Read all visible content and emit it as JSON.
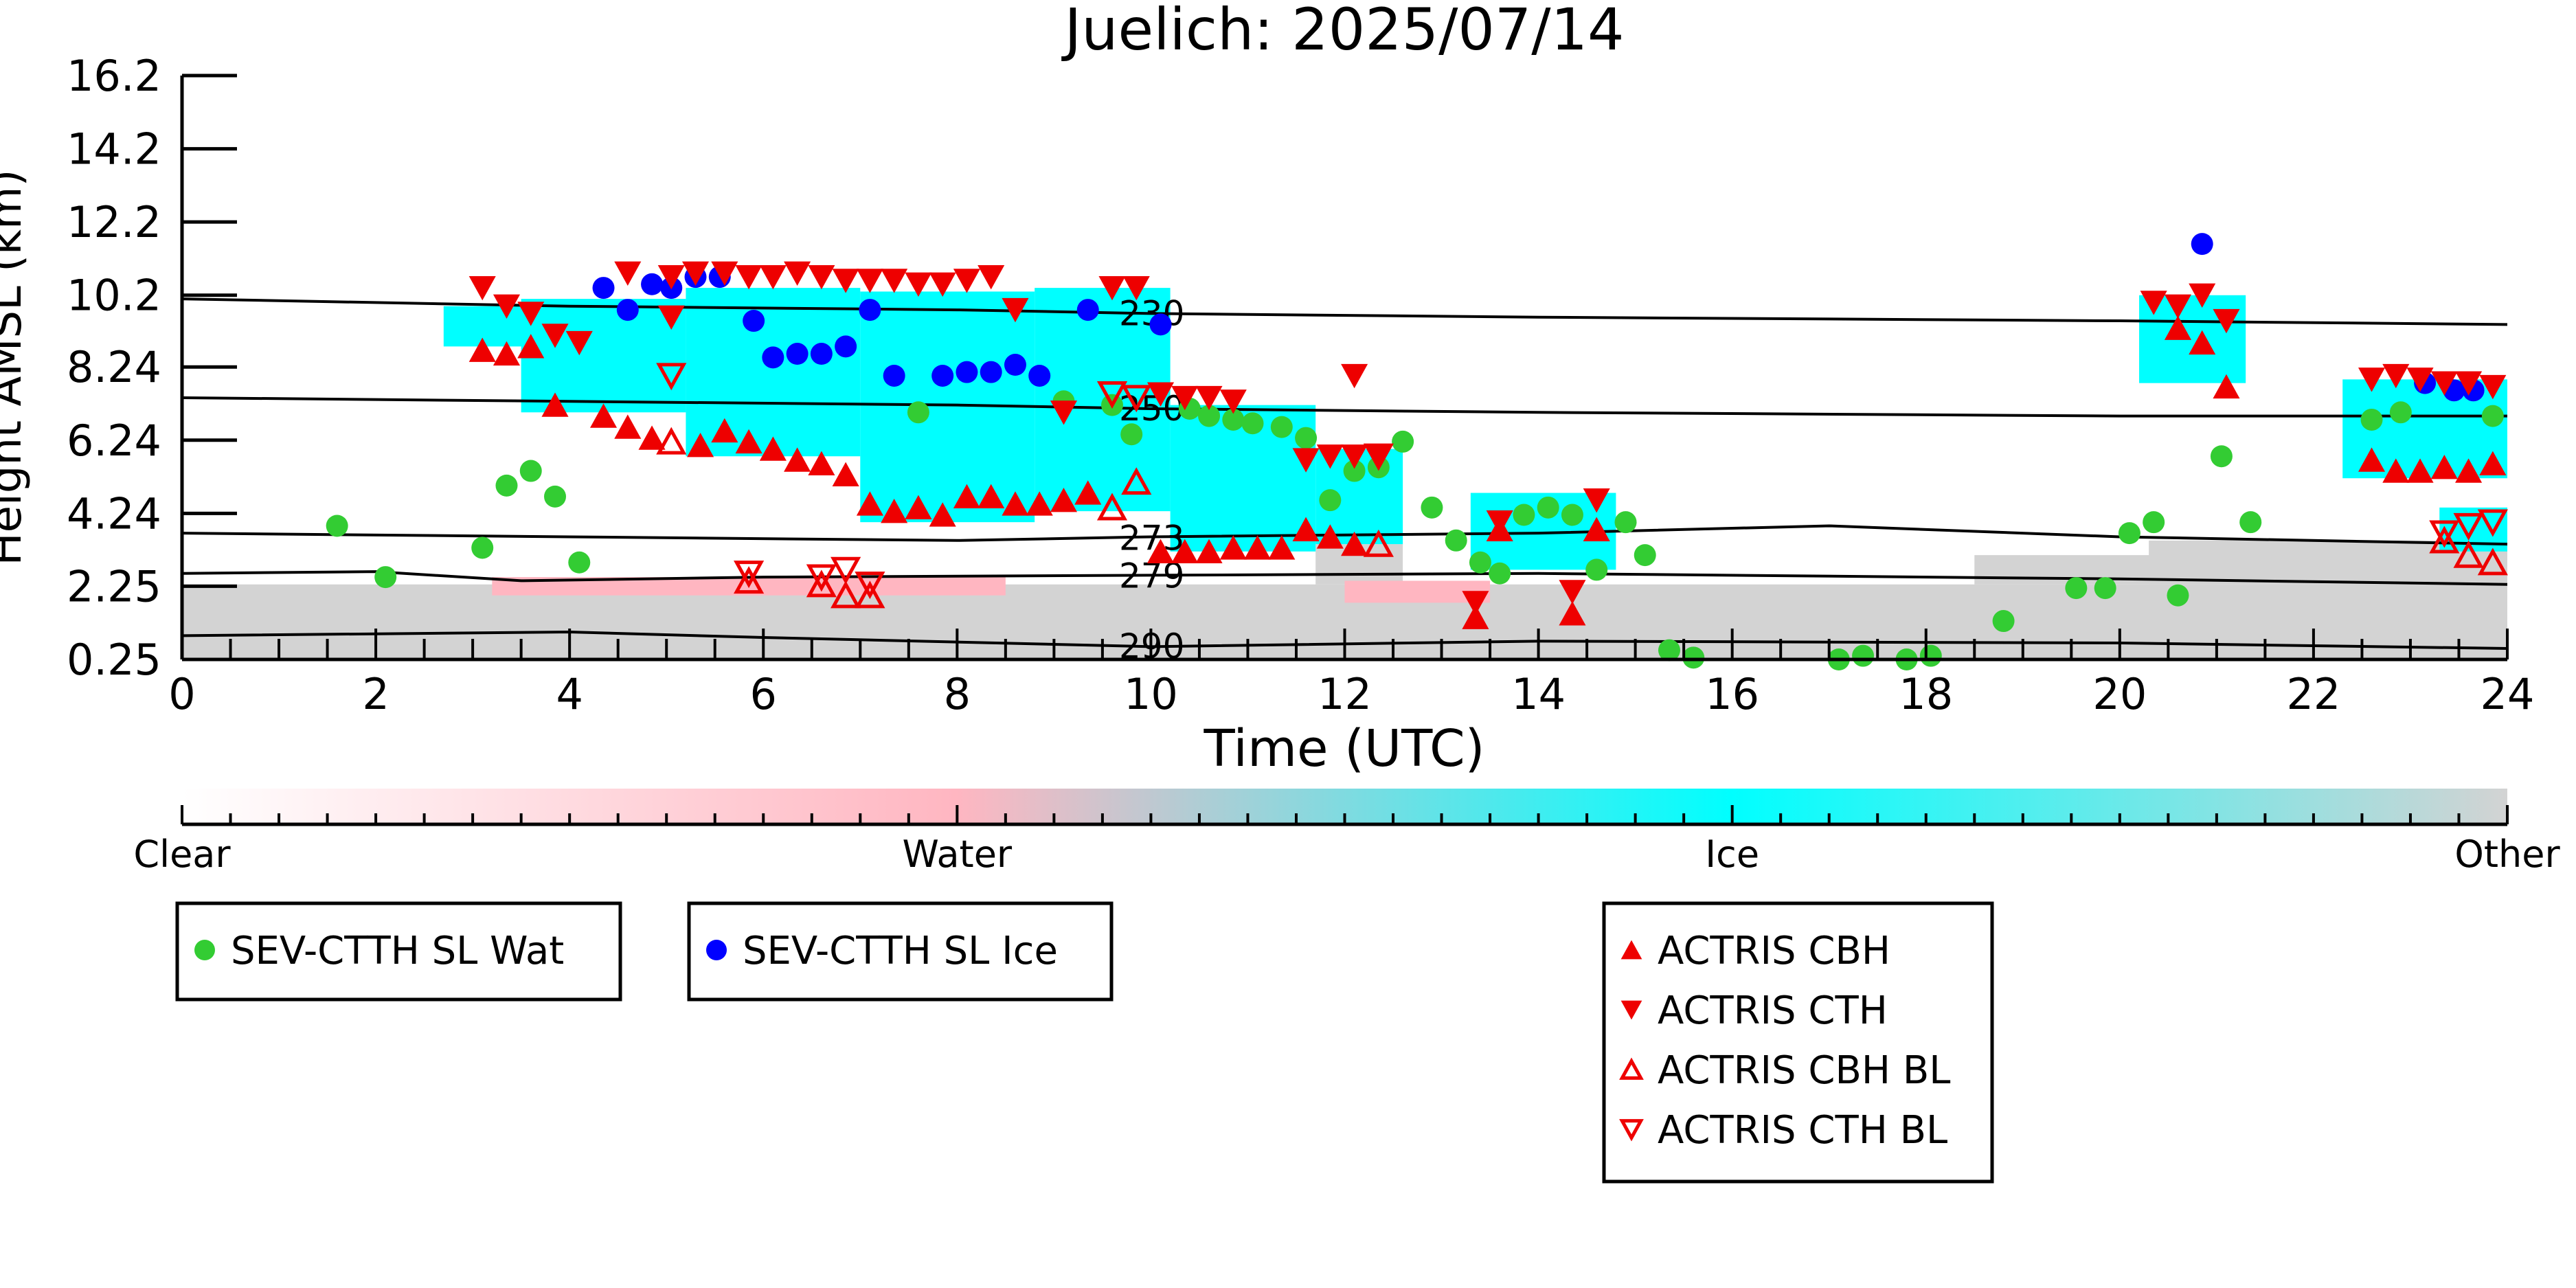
{
  "chart_data": {
    "type": "scatter",
    "title": "Juelich: 2025/07/14",
    "xlabel": "Time (UTC)",
    "ylabel": "Height AMSL (km)",
    "xlim": [
      0,
      24
    ],
    "ylim": [
      0.25,
      16.2
    ],
    "x_ticks": [
      0,
      2,
      4,
      6,
      8,
      10,
      12,
      14,
      16,
      18,
      20,
      22,
      24
    ],
    "y_ticks": [
      {
        "value": 0.25,
        "label": "0.25"
      },
      {
        "value": 2.25,
        "label": "2.25"
      },
      {
        "value": 4.24,
        "label": "4.24"
      },
      {
        "value": 6.24,
        "label": "6.24"
      },
      {
        "value": 8.24,
        "label": "8.24"
      },
      {
        "value": 10.2,
        "label": "10.2"
      },
      {
        "value": 12.2,
        "label": "12.2"
      },
      {
        "value": 14.2,
        "label": "14.2"
      },
      {
        "value": 16.2,
        "label": "16.2"
      }
    ],
    "colorbar": {
      "labels": [
        "Clear",
        "Water",
        "Ice",
        "Other"
      ],
      "colors": [
        "#ffffff",
        "#ffb6c1",
        "#00ffff",
        "#d3d3d3"
      ]
    },
    "background_classes": [
      {
        "class": "Other",
        "color": "#d3d3d3",
        "regions": [
          {
            "x0": 0,
            "x1": 24,
            "y0": 0.25,
            "y1": 2.3
          },
          {
            "x0": 18.5,
            "x1": 21,
            "y0": 2.3,
            "y1": 3.1
          },
          {
            "x0": 20.3,
            "x1": 24,
            "y0": 2.3,
            "y1": 3.5
          },
          {
            "x0": 11.7,
            "x1": 12.6,
            "y0": 2.3,
            "y1": 3.4
          }
        ]
      },
      {
        "class": "Water",
        "color": "#ffb6c1",
        "regions": [
          {
            "x0": 3.2,
            "x1": 8.5,
            "y0": 2.0,
            "y1": 2.5
          },
          {
            "x0": 12.0,
            "x1": 13.5,
            "y0": 1.8,
            "y1": 2.4
          }
        ]
      },
      {
        "class": "Ice",
        "color": "#00ffff",
        "regions": [
          {
            "x0": 2.7,
            "x1": 3.6,
            "y0": 8.8,
            "y1": 9.9
          },
          {
            "x0": 3.5,
            "x1": 5.2,
            "y0": 7.0,
            "y1": 10.1
          },
          {
            "x0": 5.2,
            "x1": 7.0,
            "y0": 5.8,
            "y1": 10.4
          },
          {
            "x0": 7.0,
            "x1": 8.8,
            "y0": 4.0,
            "y1": 10.3
          },
          {
            "x0": 8.8,
            "x1": 10.2,
            "y0": 4.3,
            "y1": 10.4
          },
          {
            "x0": 10.2,
            "x1": 11.7,
            "y0": 3.2,
            "y1": 7.2
          },
          {
            "x0": 11.7,
            "x1": 12.6,
            "y0": 3.4,
            "y1": 6.0
          },
          {
            "x0": 13.3,
            "x1": 14.8,
            "y0": 2.7,
            "y1": 4.8
          },
          {
            "x0": 20.2,
            "x1": 21.3,
            "y0": 7.8,
            "y1": 10.2
          },
          {
            "x0": 22.3,
            "x1": 24,
            "y0": 5.2,
            "y1": 7.9
          },
          {
            "x0": 23.3,
            "x1": 24,
            "y0": 3.2,
            "y1": 4.4
          }
        ]
      }
    ],
    "isotherms": [
      {
        "label": "230",
        "label_x": 9.6,
        "points": [
          [
            0,
            10.1
          ],
          [
            4,
            9.9
          ],
          [
            8,
            9.8
          ],
          [
            10,
            9.7
          ],
          [
            14,
            9.6
          ],
          [
            20,
            9.5
          ],
          [
            24,
            9.4
          ]
        ]
      },
      {
        "label": "250",
        "label_x": 9.6,
        "points": [
          [
            0,
            7.4
          ],
          [
            4,
            7.3
          ],
          [
            8,
            7.2
          ],
          [
            10,
            7.1
          ],
          [
            14,
            7.0
          ],
          [
            20,
            6.9
          ],
          [
            24,
            6.9
          ]
        ]
      },
      {
        "label": "273",
        "label_x": 9.6,
        "points": [
          [
            0,
            3.7
          ],
          [
            4,
            3.6
          ],
          [
            8,
            3.5
          ],
          [
            10,
            3.6
          ],
          [
            14,
            3.7
          ],
          [
            17,
            3.9
          ],
          [
            20,
            3.6
          ],
          [
            24,
            3.4
          ]
        ]
      },
      {
        "label": "279",
        "label_x": 9.6,
        "points": [
          [
            0,
            2.6
          ],
          [
            2,
            2.65
          ],
          [
            3.5,
            2.4
          ],
          [
            6,
            2.5
          ],
          [
            10,
            2.55
          ],
          [
            14,
            2.6
          ],
          [
            20,
            2.45
          ],
          [
            24,
            2.3
          ]
        ]
      },
      {
        "label": "290",
        "label_x": 9.6,
        "points": [
          [
            0,
            0.9
          ],
          [
            4,
            1.0
          ],
          [
            6,
            0.85
          ],
          [
            10,
            0.6
          ],
          [
            14,
            0.75
          ],
          [
            20,
            0.7
          ],
          [
            24,
            0.55
          ]
        ]
      }
    ],
    "series": [
      {
        "name": "SEV-CTTH SL Wat",
        "marker": "circle",
        "color": "#33cc33",
        "points": [
          [
            1.6,
            3.9
          ],
          [
            2.1,
            2.5
          ],
          [
            3.1,
            3.3
          ],
          [
            3.35,
            5.0
          ],
          [
            3.6,
            5.4
          ],
          [
            3.85,
            4.7
          ],
          [
            4.1,
            2.9
          ],
          [
            7.6,
            7.0
          ],
          [
            9.1,
            7.3
          ],
          [
            9.6,
            7.2
          ],
          [
            9.8,
            6.4
          ],
          [
            10.4,
            7.1
          ],
          [
            10.6,
            6.9
          ],
          [
            10.85,
            6.8
          ],
          [
            11.05,
            6.7
          ],
          [
            11.35,
            6.6
          ],
          [
            11.6,
            6.3
          ],
          [
            11.85,
            4.6
          ],
          [
            12.1,
            5.4
          ],
          [
            12.35,
            5.5
          ],
          [
            12.6,
            6.2
          ],
          [
            12.9,
            4.4
          ],
          [
            13.15,
            3.5
          ],
          [
            13.4,
            2.9
          ],
          [
            13.6,
            2.6
          ],
          [
            13.85,
            4.2
          ],
          [
            14.1,
            4.4
          ],
          [
            14.35,
            4.2
          ],
          [
            14.6,
            2.7
          ],
          [
            14.9,
            4.0
          ],
          [
            15.1,
            3.1
          ],
          [
            15.35,
            0.5
          ],
          [
            15.6,
            0.3
          ],
          [
            17.1,
            0.25
          ],
          [
            17.35,
            0.35
          ],
          [
            17.8,
            0.25
          ],
          [
            18.05,
            0.35
          ],
          [
            18.8,
            1.3
          ],
          [
            19.55,
            2.2
          ],
          [
            19.85,
            2.2
          ],
          [
            20.1,
            3.7
          ],
          [
            20.35,
            4.0
          ],
          [
            20.6,
            2.0
          ],
          [
            21.05,
            5.8
          ],
          [
            21.35,
            4.0
          ],
          [
            22.6,
            6.8
          ],
          [
            22.9,
            7.0
          ],
          [
            23.85,
            6.9
          ]
        ]
      },
      {
        "name": "SEV-CTTH SL Ice",
        "marker": "circle",
        "color": "#0000ff",
        "points": [
          [
            4.35,
            10.4
          ],
          [
            4.6,
            9.8
          ],
          [
            4.85,
            10.5
          ],
          [
            5.05,
            10.4
          ],
          [
            5.3,
            10.7
          ],
          [
            5.55,
            10.7
          ],
          [
            5.9,
            9.5
          ],
          [
            6.1,
            8.5
          ],
          [
            6.35,
            8.6
          ],
          [
            6.6,
            8.6
          ],
          [
            6.85,
            8.8
          ],
          [
            7.1,
            9.8
          ],
          [
            7.35,
            8.0
          ],
          [
            7.85,
            8.0
          ],
          [
            8.1,
            8.1
          ],
          [
            8.35,
            8.1
          ],
          [
            8.6,
            8.3
          ],
          [
            8.85,
            8.0
          ],
          [
            9.35,
            9.8
          ],
          [
            10.1,
            9.4
          ],
          [
            20.85,
            11.6
          ],
          [
            23.15,
            7.8
          ],
          [
            23.45,
            7.6
          ],
          [
            23.65,
            7.6
          ]
        ]
      },
      {
        "name": "ACTRIS CBH",
        "marker": "triangle-up",
        "color": "#ee0000",
        "filled": true,
        "points": [
          [
            3.1,
            8.7
          ],
          [
            3.35,
            8.6
          ],
          [
            3.6,
            8.8
          ],
          [
            3.85,
            7.2
          ],
          [
            4.35,
            6.9
          ],
          [
            4.6,
            6.6
          ],
          [
            4.85,
            6.3
          ],
          [
            5.35,
            6.1
          ],
          [
            5.6,
            6.5
          ],
          [
            5.85,
            6.2
          ],
          [
            6.1,
            6.0
          ],
          [
            6.35,
            5.7
          ],
          [
            6.6,
            5.6
          ],
          [
            6.85,
            5.3
          ],
          [
            7.1,
            4.5
          ],
          [
            7.35,
            4.3
          ],
          [
            7.6,
            4.4
          ],
          [
            7.85,
            4.2
          ],
          [
            8.1,
            4.7
          ],
          [
            8.35,
            4.7
          ],
          [
            8.6,
            4.5
          ],
          [
            8.85,
            4.5
          ],
          [
            9.1,
            4.6
          ],
          [
            9.35,
            4.8
          ],
          [
            10.1,
            3.2
          ],
          [
            10.35,
            3.2
          ],
          [
            10.6,
            3.2
          ],
          [
            10.85,
            3.3
          ],
          [
            11.1,
            3.3
          ],
          [
            11.35,
            3.3
          ],
          [
            11.6,
            3.8
          ],
          [
            11.85,
            3.6
          ],
          [
            12.1,
            3.4
          ],
          [
            13.35,
            1.4
          ],
          [
            13.6,
            3.8
          ],
          [
            14.35,
            1.5
          ],
          [
            14.6,
            3.8
          ],
          [
            20.6,
            9.3
          ],
          [
            20.85,
            8.9
          ],
          [
            21.1,
            7.7
          ],
          [
            22.6,
            5.7
          ],
          [
            22.85,
            5.4
          ],
          [
            23.1,
            5.4
          ],
          [
            23.35,
            5.5
          ],
          [
            23.6,
            5.4
          ],
          [
            23.85,
            5.6
          ]
        ]
      },
      {
        "name": "ACTRIS CTH",
        "marker": "triangle-down",
        "color": "#ee0000",
        "filled": true,
        "points": [
          [
            3.1,
            10.4
          ],
          [
            3.35,
            9.9
          ],
          [
            3.6,
            9.7
          ],
          [
            3.85,
            9.1
          ],
          [
            4.1,
            8.9
          ],
          [
            4.6,
            10.8
          ],
          [
            5.05,
            10.7
          ],
          [
            5.3,
            10.8
          ],
          [
            5.6,
            10.8
          ],
          [
            5.85,
            10.7
          ],
          [
            6.1,
            10.7
          ],
          [
            6.35,
            10.8
          ],
          [
            6.6,
            10.7
          ],
          [
            6.85,
            10.6
          ],
          [
            7.1,
            10.6
          ],
          [
            7.35,
            10.6
          ],
          [
            7.6,
            10.5
          ],
          [
            7.85,
            10.5
          ],
          [
            8.1,
            10.6
          ],
          [
            8.35,
            10.7
          ],
          [
            8.6,
            9.8
          ],
          [
            9.6,
            10.4
          ],
          [
            9.85,
            10.4
          ],
          [
            9.1,
            7.0
          ],
          [
            10.1,
            7.5
          ],
          [
            10.35,
            7.4
          ],
          [
            10.6,
            7.4
          ],
          [
            10.85,
            7.3
          ],
          [
            11.6,
            5.7
          ],
          [
            11.85,
            5.8
          ],
          [
            12.1,
            5.8
          ],
          [
            12.35,
            5.8
          ],
          [
            12.1,
            8.0
          ],
          [
            13.35,
            1.8
          ],
          [
            13.6,
            4.0
          ],
          [
            14.35,
            2.1
          ],
          [
            14.6,
            4.6
          ],
          [
            20.35,
            10.0
          ],
          [
            20.6,
            9.9
          ],
          [
            20.85,
            10.2
          ],
          [
            21.1,
            9.5
          ],
          [
            22.6,
            7.9
          ],
          [
            22.85,
            8.0
          ],
          [
            23.1,
            7.9
          ],
          [
            23.35,
            7.8
          ],
          [
            23.6,
            7.8
          ],
          [
            23.85,
            7.7
          ],
          [
            5.05,
            9.6
          ]
        ]
      },
      {
        "name": "ACTRIS CBH BL",
        "marker": "triangle-up",
        "color": "#ee0000",
        "filled": false,
        "points": [
          [
            5.05,
            6.2
          ],
          [
            5.85,
            2.4
          ],
          [
            6.6,
            2.3
          ],
          [
            6.85,
            2.0
          ],
          [
            7.1,
            2.0
          ],
          [
            9.6,
            4.4
          ],
          [
            9.85,
            5.1
          ],
          [
            12.35,
            3.4
          ],
          [
            23.35,
            3.5
          ],
          [
            23.6,
            3.1
          ],
          [
            23.85,
            2.9
          ]
        ]
      },
      {
        "name": "ACTRIS CTH BL",
        "marker": "triangle-down",
        "color": "#ee0000",
        "filled": false,
        "points": [
          [
            5.05,
            8.0
          ],
          [
            5.85,
            2.6
          ],
          [
            6.6,
            2.5
          ],
          [
            6.85,
            2.7
          ],
          [
            7.1,
            2.3
          ],
          [
            9.6,
            7.5
          ],
          [
            9.85,
            7.4
          ],
          [
            12.35,
            5.8
          ],
          [
            23.35,
            3.7
          ],
          [
            23.6,
            3.9
          ],
          [
            23.85,
            4.0
          ]
        ]
      }
    ],
    "legend": [
      {
        "group": "left",
        "entries": [
          "SEV-CTTH SL Wat"
        ]
      },
      {
        "group": "middle",
        "entries": [
          "SEV-CTTH SL Ice"
        ]
      },
      {
        "group": "right",
        "entries": [
          "ACTRIS CBH",
          "ACTRIS CTH",
          "ACTRIS CBH BL",
          "ACTRIS CTH BL"
        ]
      }
    ]
  }
}
